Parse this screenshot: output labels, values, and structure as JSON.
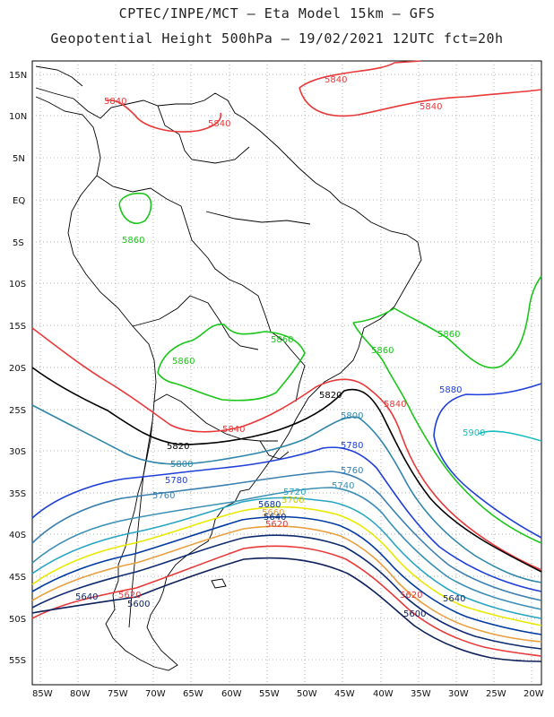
{
  "header": {
    "line1": "CPTEC/INPE/MCT –  Eta Model 15km – GFS",
    "line2": "Geopotential Height 500hPa – 19/02/2021 12UTC fct=20h"
  },
  "axes": {
    "lat_labels": [
      "15N",
      "10N",
      "5N",
      "EQ",
      "5S",
      "10S",
      "15S",
      "20S",
      "25S",
      "30S",
      "35S",
      "40S",
      "45S",
      "50S",
      "55S"
    ],
    "lon_labels": [
      "85W",
      "80W",
      "75W",
      "70W",
      "65W",
      "60W",
      "55W",
      "50W",
      "45W",
      "40W",
      "35W",
      "30W",
      "25W",
      "20W"
    ]
  },
  "contours": [
    {
      "value": "5840",
      "color": "#e8393a"
    },
    {
      "value": "5860",
      "color": "#19c619"
    },
    {
      "value": "5880",
      "color": "#1f3fd8"
    },
    {
      "value": "5900",
      "color": "#17bcbc"
    },
    {
      "value": "5820",
      "color": "#000000"
    },
    {
      "value": "5800",
      "color": "#2e86ab"
    },
    {
      "value": "5780",
      "color": "#1f3fd8"
    },
    {
      "value": "5760",
      "color": "#3a7fb0"
    },
    {
      "value": "5740",
      "color": "#3a8fb5"
    },
    {
      "value": "5720",
      "color": "#27a5c2"
    },
    {
      "value": "5700",
      "color": "#e8e800"
    },
    {
      "value": "5680",
      "color": "#003aa0"
    },
    {
      "value": "5660",
      "color": "#e8a040"
    },
    {
      "value": "5640",
      "color": "#0e2b6f"
    },
    {
      "value": "5620",
      "color": "#e8393a"
    },
    {
      "value": "5600",
      "color": "#0e1f5a"
    }
  ]
}
